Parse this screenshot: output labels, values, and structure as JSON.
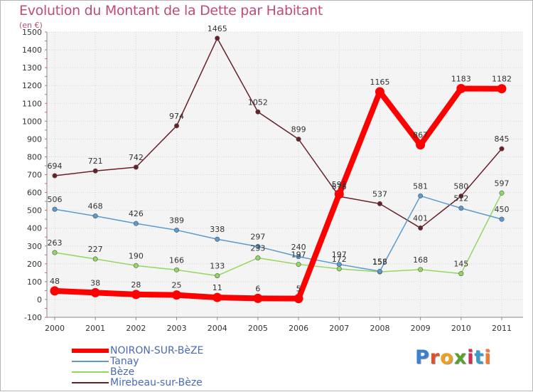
{
  "title": "Evolution du Montant de la Dette par Habitant",
  "unit": "(en €)",
  "logo": "Proxiti",
  "chart_data": {
    "type": "line",
    "title": "Evolution du Montant de la Dette par Habitant",
    "ylabel": "(en €)",
    "xlabel": "",
    "ylim": [
      -100,
      1500
    ],
    "y_ticks": [
      -100,
      0,
      100,
      200,
      300,
      400,
      500,
      600,
      700,
      800,
      900,
      1000,
      1100,
      1200,
      1300,
      1400,
      1500
    ],
    "categories": [
      "2000",
      "2001",
      "2002",
      "2003",
      "2004",
      "2005",
      "2006",
      "2007",
      "2008",
      "2009",
      "2010",
      "2011"
    ],
    "grid": true,
    "legend_position": "bottom-left",
    "series": [
      {
        "name": "NOIRON-SUR-BèZE",
        "color": "#ff0000",
        "values": [
          48,
          38,
          28,
          25,
          11,
          6,
          5,
          591,
          1165,
          867,
          1183,
          1182
        ]
      },
      {
        "name": "Tanay",
        "color": "#5a9ad0",
        "values": [
          506,
          468,
          426,
          389,
          338,
          297,
          240,
          197,
          158,
          581,
          512,
          450
        ]
      },
      {
        "name": "Bèze",
        "color": "#90d860",
        "values": [
          263,
          227,
          190,
          166,
          133,
          233,
          197,
          172,
          155,
          168,
          145,
          597
        ]
      },
      {
        "name": "Mirebeau-sur-Bèze",
        "color": "#6a2028",
        "values": [
          694,
          721,
          742,
          974,
          1465,
          1052,
          899,
          578,
          537,
          401,
          580,
          845
        ]
      }
    ]
  }
}
